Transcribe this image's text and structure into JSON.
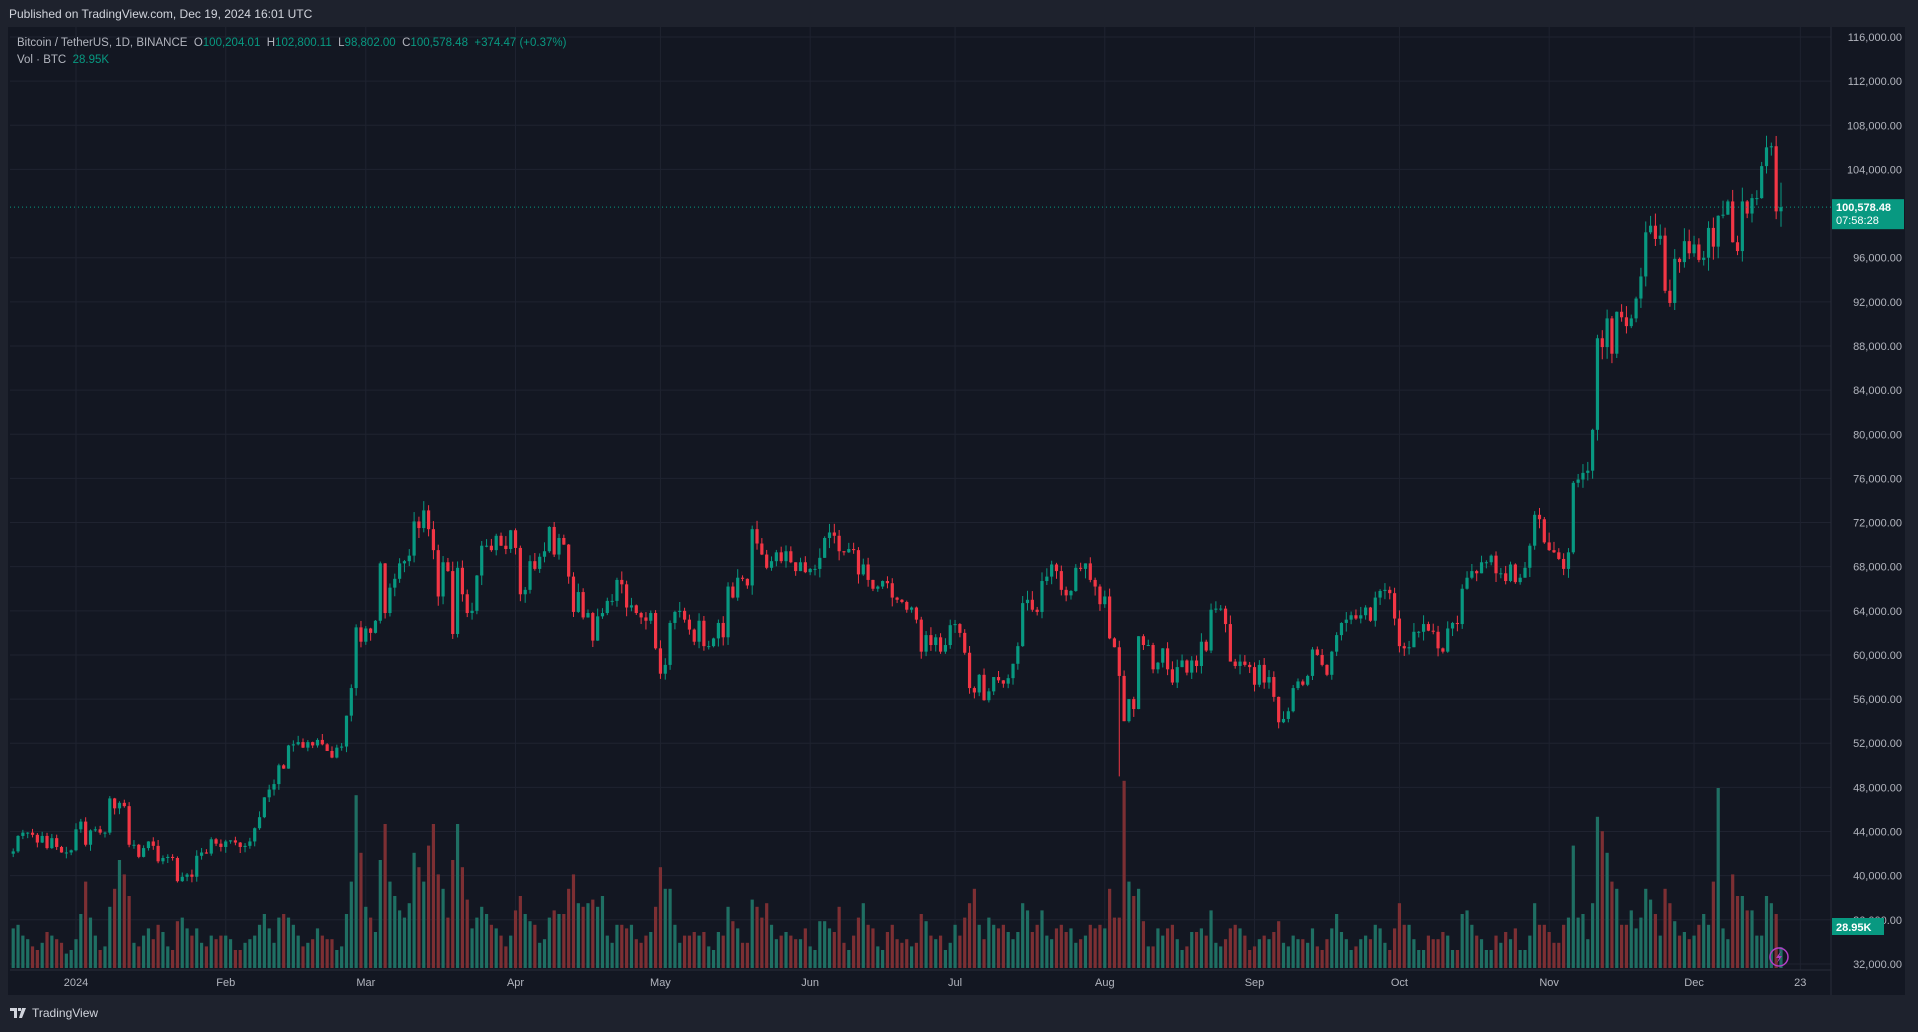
{
  "published": "Published on TradingView.com, Dec 19, 2024 16:01 UTC",
  "legend": {
    "symbol": "Bitcoin / TetherUS, 1D, BINANCE",
    "o_label": "O",
    "o": "100,204.01",
    "h_label": "H",
    "h": "102,800.11",
    "l_label": "L",
    "l": "98,802.00",
    "c_label": "C",
    "c": "100,578.48",
    "change": "+374.47 (+0.37%)",
    "vol_label": "Vol · BTC",
    "vol": "28.95K"
  },
  "last_price_label": "100,578.48",
  "countdown": "07:58:28",
  "volume_label": "28.95K",
  "footer": {
    "brand": "TradingView",
    "logo_icon": "tradingview-logo-icon"
  },
  "colors": {
    "up": "#089981",
    "down": "#f23645",
    "vol_up": "#1f6f63",
    "vol_down": "#7c2f33",
    "bg": "#131722"
  },
  "chart_data": {
    "type": "candlestick",
    "title": "Bitcoin / TetherUS, 1D, BINANCE",
    "first_date": "2023-12-19",
    "last_date": "2024-12-19",
    "ylim": [
      32000,
      116000
    ],
    "y_ticks": [
      "116,000.00",
      "112,000.00",
      "108,000.00",
      "104,000.00",
      "96,000.00",
      "92,000.00",
      "88,000.00",
      "84,000.00",
      "80,000.00",
      "76,000.00",
      "72,000.00",
      "68,000.00",
      "64,000.00",
      "60,000.00",
      "56,000.00",
      "52,000.00",
      "48,000.00",
      "44,000.00",
      "40,000.00",
      "36,000.00",
      "32,000.00"
    ],
    "y_tick_values": [
      116000,
      112000,
      108000,
      104000,
      96000,
      92000,
      88000,
      84000,
      80000,
      76000,
      72000,
      68000,
      64000,
      60000,
      56000,
      52000,
      48000,
      44000,
      40000,
      36000,
      32000
    ],
    "x_ticks": [
      {
        "label": "2024",
        "date": "2024-01-01"
      },
      {
        "label": "Feb",
        "date": "2024-02-01"
      },
      {
        "label": "Mar",
        "date": "2024-03-01"
      },
      {
        "label": "Apr",
        "date": "2024-04-01"
      },
      {
        "label": "May",
        "date": "2024-05-01"
      },
      {
        "label": "Jun",
        "date": "2024-06-01"
      },
      {
        "label": "Jul",
        "date": "2024-07-01"
      },
      {
        "label": "Aug",
        "date": "2024-08-01"
      },
      {
        "label": "Sep",
        "date": "2024-09-01"
      },
      {
        "label": "Oct",
        "date": "2024-10-01"
      },
      {
        "label": "Nov",
        "date": "2024-11-01"
      },
      {
        "label": "Dec",
        "date": "2024-12-01"
      },
      {
        "label": "23",
        "date": "2024-12-23"
      }
    ],
    "grid": true,
    "last_candle": {
      "open": 100204.01,
      "high": 102800.11,
      "low": 98802.0,
      "close": 100578.48
    },
    "close": [
      42200,
      43600,
      43900,
      43900,
      43700,
      43000,
      43600,
      42500,
      43400,
      42600,
      42100,
      42100,
      42300,
      44200,
      44900,
      42800,
      44100,
      44200,
      43900,
      43900,
      47000,
      46100,
      46600,
      46300,
      42800,
      42800,
      41700,
      42500,
      43100,
      42700,
      41300,
      41600,
      41700,
      41600,
      39500,
      39900,
      40100,
      39900,
      41800,
      42100,
      42000,
      43300,
      42900,
      42600,
      43100,
      43200,
      43000,
      42600,
      42700,
      43100,
      44300,
      45300,
      47100,
      47800,
      48300,
      50000,
      49700,
      51800,
      51900,
      52100,
      51600,
      52100,
      51800,
      52300,
      51900,
      51300,
      50700,
      51600,
      51700,
      54500,
      57000,
      62500,
      61200,
      62400,
      62000,
      63100,
      68300,
      63800,
      66100,
      66900,
      68300,
      68500,
      69000,
      72100,
      71500,
      73100,
      71400,
      69500,
      65300,
      68400,
      67600,
      61900,
      67900,
      65500,
      63800,
      64000,
      67200,
      69900,
      69900,
      69500,
      70800,
      69900,
      69600,
      71300,
      69700,
      65500,
      65900,
      68500,
      67800,
      68900,
      69400,
      71600,
      69100,
      70600,
      70000,
      67100,
      63900,
      65700,
      63400,
      63800,
      61300,
      63500,
      63800,
      64900,
      64900,
      66800,
      66400,
      64300,
      64500,
      63800,
      63400,
      63100,
      63800,
      60600,
      58300,
      59100,
      62900,
      63900,
      64000,
      63200,
      62300,
      61200,
      63100,
      60800,
      60800,
      61500,
      62900,
      61600,
      66200,
      65200,
      67000,
      66900,
      66300,
      71400,
      70100,
      69100,
      67900,
      68500,
      69300,
      68500,
      69400,
      68400,
      67600,
      68400,
      67500,
      67800,
      67800,
      68800,
      70600,
      71100,
      70800,
      69400,
      69300,
      69600,
      69500,
      67300,
      68200,
      66800,
      66000,
      66200,
      66700,
      66500,
      65200,
      65000,
      64800,
      64100,
      64300,
      63200,
      60300,
      61800,
      60900,
      61600,
      60300,
      60900,
      62700,
      62800,
      62000,
      60200,
      57000,
      56600,
      58200,
      55900,
      56700,
      58000,
      57700,
      57400,
      57900,
      59200,
      60800,
      64700,
      65000,
      64100,
      63900,
      66700,
      67100,
      68200,
      67600,
      65900,
      65400,
      65800,
      67900,
      67800,
      68300,
      66800,
      66200,
      64600,
      65300,
      61500,
      60700,
      58100,
      54000,
      56000,
      55100,
      61700,
      60900,
      60900,
      58700,
      59300,
      60600,
      58700,
      57500,
      58900,
      59500,
      58400,
      59500,
      59000,
      61200,
      60400,
      64100,
      64200,
      64200,
      62800,
      59400,
      59000,
      59400,
      59100,
      58900,
      57300,
      59100,
      57500,
      58000,
      56200,
      53900,
      54200,
      54900,
      57000,
      57600,
      57300,
      58100,
      60500,
      60000,
      59100,
      58200,
      60300,
      61800,
      62900,
      63200,
      63600,
      63300,
      63600,
      64300,
      63100,
      65200,
      65800,
      65900,
      65600,
      63300,
      60800,
      60600,
      60700,
      62100,
      62100,
      62800,
      62200,
      62100,
      60600,
      60300,
      62400,
      62900,
      62800,
      66000,
      67000,
      67600,
      67400,
      68400,
      68400,
      69000,
      67400,
      67400,
      66700,
      68200,
      66600,
      67000,
      67900,
      69900,
      72700,
      72300,
      70200,
      69500,
      69300,
      68700,
      67800,
      69300,
      75600,
      75900,
      76500,
      76700,
      80400,
      88700,
      87900,
      90500,
      87300,
      91100,
      90600,
      89800,
      90500,
      92300,
      94300,
      98300,
      98900,
      97700,
      98000,
      93000,
      91900,
      95900,
      95600,
      97500,
      96400,
      97200,
      95800,
      96000,
      98700,
      97000,
      99800,
      99900,
      101100,
      97400,
      96600,
      101100,
      100000,
      101400,
      101400,
      104300,
      106000,
      106100,
      100200,
      100578.48
    ],
    "volume_k": [
      55,
      60,
      45,
      40,
      30,
      25,
      35,
      50,
      45,
      40,
      35,
      20,
      25,
      40,
      75,
      120,
      70,
      45,
      25,
      30,
      85,
      110,
      150,
      130,
      100,
      35,
      30,
      45,
      55,
      40,
      60,
      50,
      30,
      25,
      65,
      70,
      55,
      45,
      55,
      35,
      30,
      45,
      40,
      45,
      45,
      40,
      25,
      25,
      35,
      40,
      45,
      60,
      75,
      55,
      35,
      70,
      75,
      70,
      60,
      45,
      30,
      35,
      40,
      55,
      45,
      40,
      40,
      25,
      30,
      75,
      120,
      240,
      160,
      85,
      70,
      50,
      150,
      200,
      120,
      100,
      80,
      70,
      90,
      160,
      140,
      120,
      170,
      200,
      130,
      110,
      70,
      150,
      200,
      140,
      95,
      55,
      70,
      85,
      75,
      60,
      55,
      45,
      30,
      45,
      80,
      100,
      75,
      65,
      60,
      35,
      40,
      70,
      80,
      75,
      75,
      110,
      130,
      90,
      85,
      90,
      95,
      85,
      100,
      45,
      35,
      60,
      60,
      55,
      60,
      40,
      35,
      45,
      50,
      85,
      140,
      110,
      110,
      60,
      35,
      45,
      45,
      50,
      45,
      50,
      30,
      25,
      50,
      45,
      85,
      65,
      55,
      35,
      35,
      95,
      85,
      70,
      90,
      60,
      40,
      45,
      50,
      45,
      40,
      40,
      55,
      30,
      25,
      65,
      65,
      55,
      50,
      85,
      35,
      25,
      45,
      70,
      90,
      60,
      55,
      30,
      25,
      50,
      60,
      40,
      35,
      40,
      30,
      35,
      75,
      65,
      45,
      40,
      45,
      25,
      35,
      60,
      45,
      70,
      90,
      110,
      60,
      40,
      70,
      60,
      55,
      60,
      50,
      40,
      50,
      90,
      80,
      50,
      60,
      80,
      45,
      40,
      55,
      60,
      50,
      55,
      35,
      40,
      45,
      60,
      55,
      60,
      55,
      110,
      70,
      70,
      260,
      120,
      100,
      110,
      65,
      30,
      30,
      55,
      45,
      55,
      60,
      40,
      25,
      30,
      50,
      50,
      55,
      45,
      80,
      35,
      30,
      40,
      55,
      60,
      55,
      45,
      25,
      30,
      40,
      45,
      40,
      50,
      65,
      35,
      30,
      45,
      40,
      40,
      35,
      55,
      30,
      25,
      40,
      55,
      75,
      50,
      40,
      25,
      30,
      40,
      45,
      40,
      60,
      55,
      35,
      25,
      55,
      90,
      60,
      60,
      40,
      25,
      25,
      45,
      40,
      40,
      50,
      45,
      25,
      25,
      75,
      80,
      60,
      45,
      40,
      25,
      25,
      45,
      35,
      50,
      40,
      55,
      25,
      25,
      45,
      90,
      60,
      60,
      50,
      35,
      35,
      60,
      70,
      170,
      70,
      75,
      40,
      90,
      210,
      190,
      160,
      120,
      110,
      60,
      60,
      80,
      55,
      70,
      110,
      95,
      75,
      45,
      110,
      90,
      65,
      45,
      50,
      40,
      45,
      60,
      75,
      60,
      120,
      250,
      55,
      40,
      130,
      100,
      100,
      80,
      80,
      45,
      45,
      100,
      90,
      75,
      28.95
    ]
  }
}
